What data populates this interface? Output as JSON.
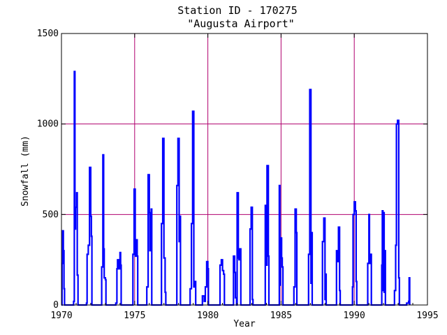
{
  "chart_data": {
    "type": "line",
    "title": "Station ID - 170275",
    "subtitle": "\"Augusta Airport\"",
    "xlabel": "Year",
    "ylabel": "Snowfall (mm)",
    "xlim": [
      1970,
      1995
    ],
    "ylim": [
      0,
      1500
    ],
    "xticks": [
      "1970",
      "1975",
      "1980",
      "1985",
      "1990",
      "1995"
    ],
    "yticks": [
      "0",
      "500",
      "1000",
      "1500"
    ],
    "grid": true,
    "colors": {
      "series": "#0000ff",
      "grid": "#b0006e",
      "axes": "#000000"
    },
    "series": [
      {
        "values": [
          [
            1970.0,
            0
          ],
          [
            1970.04,
            230
          ],
          [
            1970.08,
            410
          ],
          [
            1970.13,
            300
          ],
          [
            1970.17,
            90
          ],
          [
            1970.21,
            0
          ],
          [
            1970.79,
            0
          ],
          [
            1970.83,
            20
          ],
          [
            1970.88,
            1290
          ],
          [
            1970.92,
            420
          ],
          [
            1970.96,
            540
          ],
          [
            1971.04,
            620
          ],
          [
            1971.08,
            165
          ],
          [
            1971.13,
            0
          ],
          [
            1971.63,
            0
          ],
          [
            1971.71,
            10
          ],
          [
            1971.75,
            280
          ],
          [
            1971.83,
            330
          ],
          [
            1971.92,
            760
          ],
          [
            1972.0,
            490
          ],
          [
            1972.04,
            380
          ],
          [
            1972.08,
            0
          ],
          [
            1972.67,
            0
          ],
          [
            1972.75,
            210
          ],
          [
            1972.83,
            830
          ],
          [
            1972.88,
            310
          ],
          [
            1972.92,
            150
          ],
          [
            1973.0,
            140
          ],
          [
            1973.04,
            0
          ],
          [
            1973.67,
            0
          ],
          [
            1973.71,
            10
          ],
          [
            1973.79,
            200
          ],
          [
            1973.83,
            250
          ],
          [
            1973.92,
            200
          ],
          [
            1974.0,
            290
          ],
          [
            1974.04,
            220
          ],
          [
            1974.08,
            0
          ],
          [
            1974.79,
            0
          ],
          [
            1974.88,
            280
          ],
          [
            1974.96,
            640
          ],
          [
            1975.04,
            270
          ],
          [
            1975.08,
            360
          ],
          [
            1975.17,
            270
          ],
          [
            1975.21,
            0
          ],
          [
            1975.75,
            0
          ],
          [
            1975.83,
            100
          ],
          [
            1975.92,
            720
          ],
          [
            1976.0,
            510
          ],
          [
            1976.04,
            300
          ],
          [
            1976.13,
            530
          ],
          [
            1976.17,
            0
          ],
          [
            1976.75,
            0
          ],
          [
            1976.83,
            450
          ],
          [
            1976.92,
            920
          ],
          [
            1977.0,
            260
          ],
          [
            1977.08,
            70
          ],
          [
            1977.13,
            0
          ],
          [
            1977.79,
            0
          ],
          [
            1977.88,
            660
          ],
          [
            1977.96,
            920
          ],
          [
            1978.04,
            350
          ],
          [
            1978.08,
            490
          ],
          [
            1978.13,
            0
          ],
          [
            1978.71,
            0
          ],
          [
            1978.79,
            90
          ],
          [
            1978.88,
            450
          ],
          [
            1978.96,
            1070
          ],
          [
            1979.04,
            100
          ],
          [
            1979.13,
            130
          ],
          [
            1979.17,
            0
          ],
          [
            1979.58,
            0
          ],
          [
            1979.63,
            50
          ],
          [
            1979.75,
            20
          ],
          [
            1979.83,
            100
          ],
          [
            1979.92,
            240
          ],
          [
            1980.0,
            200
          ],
          [
            1980.04,
            0
          ],
          [
            1980.79,
            0
          ],
          [
            1980.83,
            220
          ],
          [
            1980.92,
            250
          ],
          [
            1981.0,
            190
          ],
          [
            1981.08,
            170
          ],
          [
            1981.13,
            0
          ],
          [
            1981.67,
            0
          ],
          [
            1981.75,
            270
          ],
          [
            1981.83,
            180
          ],
          [
            1981.88,
            40
          ],
          [
            1981.96,
            0
          ],
          [
            1981.96,
            0
          ],
          [
            1982.0,
            620
          ],
          [
            1982.08,
            260
          ],
          [
            1982.13,
            250
          ],
          [
            1982.17,
            310
          ],
          [
            1982.25,
            0
          ],
          [
            1982.79,
            0
          ],
          [
            1982.88,
            420
          ],
          [
            1982.96,
            540
          ],
          [
            1983.04,
            30
          ],
          [
            1983.08,
            0
          ],
          [
            1983.83,
            0
          ],
          [
            1983.92,
            550
          ],
          [
            1984.0,
            220
          ],
          [
            1984.04,
            770
          ],
          [
            1984.13,
            270
          ],
          [
            1984.17,
            0
          ],
          [
            1984.79,
            0
          ],
          [
            1984.88,
            660
          ],
          [
            1984.92,
            110
          ],
          [
            1984.96,
            370
          ],
          [
            1985.04,
            260
          ],
          [
            1985.08,
            210
          ],
          [
            1985.13,
            0
          ],
          [
            1985.79,
            0
          ],
          [
            1985.88,
            100
          ],
          [
            1985.96,
            530
          ],
          [
            1986.04,
            400
          ],
          [
            1986.08,
            0
          ],
          [
            1986.79,
            0
          ],
          [
            1986.88,
            280
          ],
          [
            1986.96,
            1190
          ],
          [
            1987.04,
            120
          ],
          [
            1987.08,
            400
          ],
          [
            1987.13,
            0
          ],
          [
            1987.75,
            0
          ],
          [
            1987.83,
            350
          ],
          [
            1987.92,
            480
          ],
          [
            1988.0,
            30
          ],
          [
            1988.04,
            170
          ],
          [
            1988.08,
            0
          ],
          [
            1988.67,
            0
          ],
          [
            1988.79,
            300
          ],
          [
            1988.88,
            240
          ],
          [
            1988.92,
            430
          ],
          [
            1989.0,
            80
          ],
          [
            1989.04,
            0
          ],
          [
            1989.79,
            0
          ],
          [
            1989.88,
            100
          ],
          [
            1989.92,
            500
          ],
          [
            1990.0,
            570
          ],
          [
            1990.08,
            520
          ],
          [
            1990.13,
            130
          ],
          [
            1990.17,
            0
          ],
          [
            1990.79,
            0
          ],
          [
            1990.92,
            230
          ],
          [
            1991.0,
            500
          ],
          [
            1991.04,
            230
          ],
          [
            1991.13,
            280
          ],
          [
            1991.17,
            0
          ],
          [
            1991.83,
            0
          ],
          [
            1991.88,
            220
          ],
          [
            1991.92,
            520
          ],
          [
            1991.96,
            80
          ],
          [
            1992.0,
            510
          ],
          [
            1992.04,
            70
          ],
          [
            1992.08,
            300
          ],
          [
            1992.13,
            0
          ],
          [
            1992.67,
            0
          ],
          [
            1992.75,
            80
          ],
          [
            1992.83,
            330
          ],
          [
            1992.88,
            1000
          ],
          [
            1992.96,
            1020
          ],
          [
            1993.04,
            150
          ],
          [
            1993.08,
            0
          ],
          [
            1993.5,
            0
          ],
          [
            1993.58,
            10
          ],
          [
            1993.71,
            20
          ],
          [
            1993.75,
            150
          ],
          [
            1993.79,
            0
          ]
        ]
      }
    ]
  }
}
